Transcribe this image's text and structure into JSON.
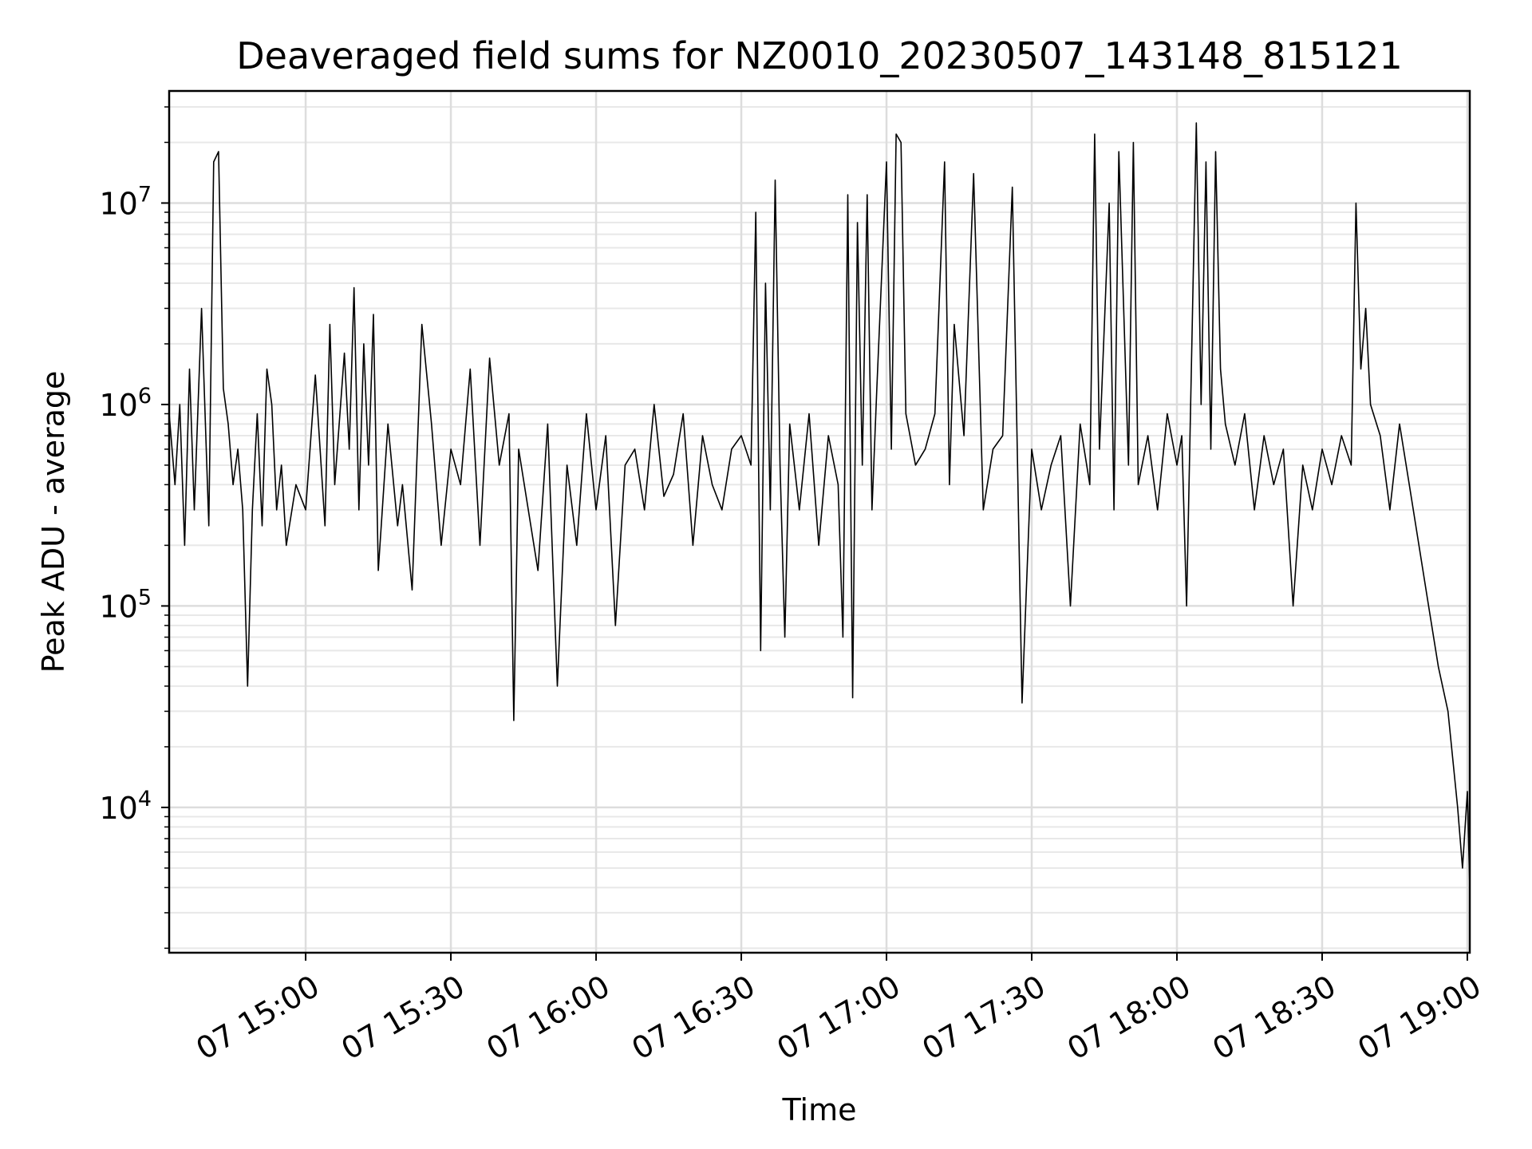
{
  "chart_data": {
    "type": "line",
    "title": "Deaveraged field sums for NZ0010_20230507_143148_815121",
    "xlabel": "Time",
    "ylabel": "Peak ADU - average",
    "yscale": "log",
    "ylim": [
      1900,
      36000000
    ],
    "xlim": [
      "2023-05-07 14:31:48",
      "2023-05-07 19:00:30"
    ],
    "grid": true,
    "x_ticks": [
      {
        "value": "2023-05-07 15:00",
        "label": "07 15:00"
      },
      {
        "value": "2023-05-07 15:30",
        "label": "07 15:30"
      },
      {
        "value": "2023-05-07 16:00",
        "label": "07 16:00"
      },
      {
        "value": "2023-05-07 16:30",
        "label": "07 16:30"
      },
      {
        "value": "2023-05-07 17:00",
        "label": "07 17:00"
      },
      {
        "value": "2023-05-07 17:30",
        "label": "07 17:30"
      },
      {
        "value": "2023-05-07 18:00",
        "label": "07 18:00"
      },
      {
        "value": "2023-05-07 18:30",
        "label": "07 18:30"
      },
      {
        "value": "2023-05-07 19:00",
        "label": "07 19:00"
      }
    ],
    "y_ticks": [
      {
        "value": 10000,
        "base": "10",
        "exp": "4"
      },
      {
        "value": 100000,
        "base": "10",
        "exp": "5"
      },
      {
        "value": 1000000,
        "base": "10",
        "exp": "6"
      },
      {
        "value": 10000000,
        "base": "10",
        "exp": "7"
      }
    ],
    "series": [
      {
        "color": "#000000",
        "x": [
          "2023-05-07 14:31:48",
          "2023-05-07 14:33:00",
          "2023-05-07 14:34:00",
          "2023-05-07 14:35:00",
          "2023-05-07 14:36:00",
          "2023-05-07 14:37:00",
          "2023-05-07 14:38:30",
          "2023-05-07 14:40:00",
          "2023-05-07 14:41:00",
          "2023-05-07 14:42:00",
          "2023-05-07 14:43:00",
          "2023-05-07 14:44:00",
          "2023-05-07 14:45:00",
          "2023-05-07 14:46:00",
          "2023-05-07 14:47:00",
          "2023-05-07 14:48:00",
          "2023-05-07 14:49:00",
          "2023-05-07 14:50:00",
          "2023-05-07 14:51:00",
          "2023-05-07 14:52:00",
          "2023-05-07 14:53:00",
          "2023-05-07 14:54:00",
          "2023-05-07 14:55:00",
          "2023-05-07 14:56:00",
          "2023-05-07 14:58:00",
          "2023-05-07 15:00:00",
          "2023-05-07 15:02:00",
          "2023-05-07 15:04:00",
          "2023-05-07 15:05:00",
          "2023-05-07 15:06:00",
          "2023-05-07 15:08:00",
          "2023-05-07 15:09:00",
          "2023-05-07 15:10:00",
          "2023-05-07 15:11:00",
          "2023-05-07 15:12:00",
          "2023-05-07 15:13:00",
          "2023-05-07 15:14:00",
          "2023-05-07 15:15:00",
          "2023-05-07 15:17:00",
          "2023-05-07 15:19:00",
          "2023-05-07 15:20:00",
          "2023-05-07 15:22:00",
          "2023-05-07 15:24:00",
          "2023-05-07 15:26:00",
          "2023-05-07 15:28:00",
          "2023-05-07 15:30:00",
          "2023-05-07 15:32:00",
          "2023-05-07 15:34:00",
          "2023-05-07 15:36:00",
          "2023-05-07 15:38:00",
          "2023-05-07 15:40:00",
          "2023-05-07 15:42:00",
          "2023-05-07 15:43:00",
          "2023-05-07 15:44:00",
          "2023-05-07 15:46:00",
          "2023-05-07 15:48:00",
          "2023-05-07 15:50:00",
          "2023-05-07 15:52:00",
          "2023-05-07 15:54:00",
          "2023-05-07 15:56:00",
          "2023-05-07 15:58:00",
          "2023-05-07 16:00:00",
          "2023-05-07 16:02:00",
          "2023-05-07 16:04:00",
          "2023-05-07 16:06:00",
          "2023-05-07 16:08:00",
          "2023-05-07 16:10:00",
          "2023-05-07 16:12:00",
          "2023-05-07 16:14:00",
          "2023-05-07 16:16:00",
          "2023-05-07 16:18:00",
          "2023-05-07 16:20:00",
          "2023-05-07 16:22:00",
          "2023-05-07 16:24:00",
          "2023-05-07 16:26:00",
          "2023-05-07 16:28:00",
          "2023-05-07 16:30:00",
          "2023-05-07 16:32:00",
          "2023-05-07 16:33:00",
          "2023-05-07 16:34:00",
          "2023-05-07 16:35:00",
          "2023-05-07 16:36:00",
          "2023-05-07 16:37:00",
          "2023-05-07 16:38:00",
          "2023-05-07 16:39:00",
          "2023-05-07 16:40:00",
          "2023-05-07 16:42:00",
          "2023-05-07 16:44:00",
          "2023-05-07 16:46:00",
          "2023-05-07 16:48:00",
          "2023-05-07 16:50:00",
          "2023-05-07 16:51:00",
          "2023-05-07 16:52:00",
          "2023-05-07 16:53:00",
          "2023-05-07 16:54:00",
          "2023-05-07 16:55:00",
          "2023-05-07 16:56:00",
          "2023-05-07 16:57:00",
          "2023-05-07 16:58:00",
          "2023-05-07 17:00:00",
          "2023-05-07 17:01:00",
          "2023-05-07 17:02:00",
          "2023-05-07 17:03:00",
          "2023-05-07 17:04:00",
          "2023-05-07 17:06:00",
          "2023-05-07 17:08:00",
          "2023-05-07 17:10:00",
          "2023-05-07 17:12:00",
          "2023-05-07 17:13:00",
          "2023-05-07 17:14:00",
          "2023-05-07 17:16:00",
          "2023-05-07 17:18:00",
          "2023-05-07 17:20:00",
          "2023-05-07 17:22:00",
          "2023-05-07 17:24:00",
          "2023-05-07 17:26:00",
          "2023-05-07 17:28:00",
          "2023-05-07 17:30:00",
          "2023-05-07 17:32:00",
          "2023-05-07 17:34:00",
          "2023-05-07 17:36:00",
          "2023-05-07 17:38:00",
          "2023-05-07 17:40:00",
          "2023-05-07 17:42:00",
          "2023-05-07 17:43:00",
          "2023-05-07 17:44:00",
          "2023-05-07 17:46:00",
          "2023-05-07 17:47:00",
          "2023-05-07 17:48:00",
          "2023-05-07 17:50:00",
          "2023-05-07 17:51:00",
          "2023-05-07 17:52:00",
          "2023-05-07 17:54:00",
          "2023-05-07 17:56:00",
          "2023-05-07 17:58:00",
          "2023-05-07 18:00:00",
          "2023-05-07 18:01:00",
          "2023-05-07 18:02:00",
          "2023-05-07 18:04:00",
          "2023-05-07 18:05:00",
          "2023-05-07 18:06:00",
          "2023-05-07 18:07:00",
          "2023-05-07 18:08:00",
          "2023-05-07 18:09:00",
          "2023-05-07 18:10:00",
          "2023-05-07 18:12:00",
          "2023-05-07 18:14:00",
          "2023-05-07 18:16:00",
          "2023-05-07 18:18:00",
          "2023-05-07 18:20:00",
          "2023-05-07 18:22:00",
          "2023-05-07 18:24:00",
          "2023-05-07 18:26:00",
          "2023-05-07 18:28:00",
          "2023-05-07 18:30:00",
          "2023-05-07 18:32:00",
          "2023-05-07 18:34:00",
          "2023-05-07 18:36:00",
          "2023-05-07 18:37:00",
          "2023-05-07 18:38:00",
          "2023-05-07 18:39:00",
          "2023-05-07 18:40:00",
          "2023-05-07 18:42:00",
          "2023-05-07 18:44:00",
          "2023-05-07 18:46:00",
          "2023-05-07 18:48:00",
          "2023-05-07 18:50:00",
          "2023-05-07 18:52:00",
          "2023-05-07 18:54:00",
          "2023-05-07 18:56:00",
          "2023-05-07 18:58:00",
          "2023-05-07 18:59:00",
          "2023-05-07 19:00:00",
          "2023-05-07 19:00:30"
        ],
        "y": [
          900000,
          400000,
          1000000,
          200000,
          1500000,
          300000,
          3000000,
          250000,
          16000000,
          18000000,
          1200000,
          800000,
          400000,
          600000,
          300000,
          40000,
          300000,
          900000,
          250000,
          1500000,
          1000000,
          300000,
          500000,
          200000,
          400000,
          300000,
          1400000,
          250000,
          2500000,
          400000,
          1800000,
          600000,
          3800000,
          300000,
          2000000,
          500000,
          2800000,
          150000,
          800000,
          250000,
          400000,
          120000,
          2500000,
          800000,
          200000,
          600000,
          400000,
          1500000,
          200000,
          1700000,
          500000,
          900000,
          27000,
          600000,
          300000,
          150000,
          800000,
          40000,
          500000,
          200000,
          900000,
          300000,
          700000,
          80000,
          500000,
          600000,
          300000,
          1000000,
          350000,
          450000,
          900000,
          200000,
          700000,
          400000,
          300000,
          600000,
          700000,
          500000,
          9000000,
          60000,
          4000000,
          300000,
          13000000,
          500000,
          70000,
          800000,
          300000,
          900000,
          200000,
          700000,
          400000,
          70000,
          11000000,
          35000,
          8000000,
          500000,
          11000000,
          300000,
          1200000,
          16000000,
          600000,
          22000000,
          20000000,
          900000,
          500000,
          600000,
          900000,
          16000000,
          400000,
          2500000,
          700000,
          14000000,
          300000,
          600000,
          700000,
          12000000,
          33000,
          600000,
          300000,
          500000,
          700000,
          100000,
          800000,
          400000,
          22000000,
          600000,
          10000000,
          300000,
          18000000,
          500000,
          20000000,
          400000,
          700000,
          300000,
          900000,
          500000,
          700000,
          100000,
          25000000,
          1000000,
          16000000,
          600000,
          18000000,
          1500000,
          800000,
          500000,
          900000,
          300000,
          700000,
          400000,
          600000,
          100000,
          500000,
          300000,
          600000,
          400000,
          700000,
          500000,
          10000000,
          1500000,
          3000000,
          1000000,
          700000,
          300000,
          800000,
          400000,
          200000,
          100000,
          50000,
          30000,
          10000,
          5000,
          12000,
          4000
        ]
      }
    ]
  }
}
